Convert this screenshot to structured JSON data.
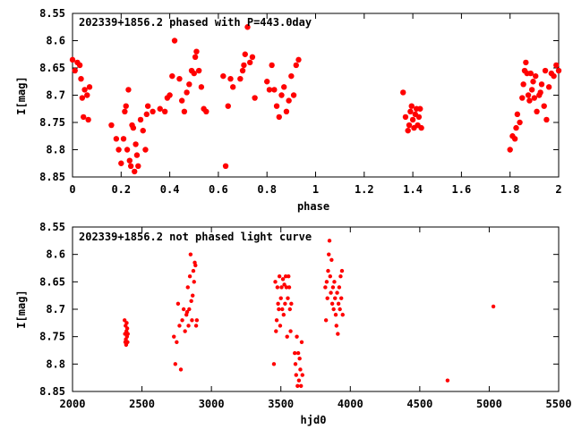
{
  "chart_data": [
    {
      "type": "scatter",
      "title": "202339+1856.2 phased with P=443.0day",
      "xlabel": "phase",
      "ylabel": "I[mag]",
      "xlim": [
        0,
        2
      ],
      "ylim": [
        8.85,
        8.55
      ],
      "y_inverted": true,
      "xticks": [
        "0",
        "0.2",
        "0.4",
        "0.6",
        "0.8",
        "1",
        "1.2",
        "1.4",
        "1.6",
        "1.8",
        "2"
      ],
      "yticks": [
        "8.55",
        "8.6",
        "8.65",
        "8.7",
        "8.75",
        "8.8",
        "8.85"
      ],
      "marker_color": "#ff0000",
      "grid": false,
      "series": [
        {
          "points": [
            [
              0.0,
              8.635
            ],
            [
              0.01,
              8.655
            ],
            [
              0.02,
              8.64
            ],
            [
              0.03,
              8.645
            ],
            [
              0.035,
              8.67
            ],
            [
              0.04,
              8.705
            ],
            [
              0.045,
              8.74
            ],
            [
              0.05,
              8.69
            ],
            [
              0.06,
              8.7
            ],
            [
              0.065,
              8.745
            ],
            [
              0.07,
              8.685
            ],
            [
              0.16,
              8.755
            ],
            [
              0.18,
              8.78
            ],
            [
              0.19,
              8.8
            ],
            [
              0.2,
              8.825
            ],
            [
              0.21,
              8.78
            ],
            [
              0.215,
              8.73
            ],
            [
              0.22,
              8.72
            ],
            [
              0.225,
              8.8
            ],
            [
              0.23,
              8.69
            ],
            [
              0.235,
              8.82
            ],
            [
              0.24,
              8.83
            ],
            [
              0.245,
              8.755
            ],
            [
              0.25,
              8.76
            ],
            [
              0.255,
              8.84
            ],
            [
              0.26,
              8.79
            ],
            [
              0.265,
              8.81
            ],
            [
              0.27,
              8.83
            ],
            [
              0.28,
              8.745
            ],
            [
              0.29,
              8.765
            ],
            [
              0.3,
              8.8
            ],
            [
              0.305,
              8.735
            ],
            [
              0.31,
              8.72
            ],
            [
              0.33,
              8.73
            ],
            [
              0.36,
              8.725
            ],
            [
              0.38,
              8.73
            ],
            [
              0.39,
              8.705
            ],
            [
              0.4,
              8.7
            ],
            [
              0.41,
              8.665
            ],
            [
              0.42,
              8.6
            ],
            [
              0.44,
              8.67
            ],
            [
              0.45,
              8.71
            ],
            [
              0.46,
              8.73
            ],
            [
              0.47,
              8.695
            ],
            [
              0.48,
              8.68
            ],
            [
              0.49,
              8.655
            ],
            [
              0.5,
              8.66
            ],
            [
              0.505,
              8.63
            ],
            [
              0.51,
              8.62
            ],
            [
              0.52,
              8.655
            ],
            [
              0.53,
              8.685
            ],
            [
              0.54,
              8.725
            ],
            [
              0.55,
              8.73
            ],
            [
              0.62,
              8.665
            ],
            [
              0.63,
              8.83
            ],
            [
              0.64,
              8.72
            ],
            [
              0.65,
              8.67
            ],
            [
              0.66,
              8.685
            ],
            [
              0.69,
              8.67
            ],
            [
              0.7,
              8.655
            ],
            [
              0.705,
              8.645
            ],
            [
              0.71,
              8.625
            ],
            [
              0.72,
              8.575
            ],
            [
              0.73,
              8.64
            ],
            [
              0.74,
              8.63
            ],
            [
              0.75,
              8.705
            ],
            [
              0.8,
              8.675
            ],
            [
              0.81,
              8.69
            ],
            [
              0.82,
              8.645
            ],
            [
              0.83,
              8.69
            ],
            [
              0.84,
              8.72
            ],
            [
              0.85,
              8.74
            ],
            [
              0.86,
              8.7
            ],
            [
              0.87,
              8.685
            ],
            [
              0.88,
              8.73
            ],
            [
              0.89,
              8.71
            ],
            [
              0.9,
              8.665
            ],
            [
              0.91,
              8.7
            ],
            [
              0.92,
              8.645
            ],
            [
              0.93,
              8.635
            ],
            [
              1.36,
              8.695
            ],
            [
              1.37,
              8.74
            ],
            [
              1.38,
              8.765
            ],
            [
              1.385,
              8.755
            ],
            [
              1.39,
              8.73
            ],
            [
              1.395,
              8.72
            ],
            [
              1.4,
              8.745
            ],
            [
              1.405,
              8.76
            ],
            [
              1.41,
              8.735
            ],
            [
              1.415,
              8.725
            ],
            [
              1.42,
              8.755
            ],
            [
              1.425,
              8.74
            ],
            [
              1.43,
              8.725
            ],
            [
              1.435,
              8.76
            ],
            [
              1.8,
              8.8
            ],
            [
              1.81,
              8.775
            ],
            [
              1.82,
              8.78
            ],
            [
              1.825,
              8.76
            ],
            [
              1.83,
              8.735
            ],
            [
              1.84,
              8.75
            ],
            [
              1.85,
              8.705
            ],
            [
              1.855,
              8.68
            ],
            [
              1.86,
              8.655
            ],
            [
              1.865,
              8.64
            ],
            [
              1.87,
              8.66
            ],
            [
              1.875,
              8.7
            ],
            [
              1.88,
              8.71
            ],
            [
              1.885,
              8.66
            ],
            [
              1.89,
              8.69
            ],
            [
              1.895,
              8.675
            ],
            [
              1.9,
              8.705
            ],
            [
              1.905,
              8.665
            ],
            [
              1.91,
              8.73
            ],
            [
              1.92,
              8.7
            ],
            [
              1.925,
              8.695
            ],
            [
              1.93,
              8.68
            ],
            [
              1.94,
              8.72
            ],
            [
              1.945,
              8.655
            ],
            [
              1.95,
              8.745
            ],
            [
              1.96,
              8.685
            ],
            [
              1.97,
              8.66
            ],
            [
              1.98,
              8.665
            ],
            [
              1.99,
              8.645
            ],
            [
              2.0,
              8.655
            ]
          ]
        }
      ]
    },
    {
      "type": "scatter",
      "title": "202339+1856.2 not phased light curve",
      "xlabel": "hjd0",
      "ylabel": "I[mag]",
      "xlim": [
        2000,
        5500
      ],
      "ylim": [
        8.85,
        8.55
      ],
      "y_inverted": true,
      "xticks": [
        "2000",
        "2500",
        "3000",
        "3500",
        "4000",
        "4500",
        "5000",
        "5500"
      ],
      "yticks": [
        "8.55",
        "8.6",
        "8.65",
        "8.7",
        "8.75",
        "8.8",
        "8.85"
      ],
      "marker_color": "#ff0000",
      "grid": false,
      "series": [
        {
          "points": [
            [
              2375,
              8.72
            ],
            [
              2378,
              8.745
            ],
            [
              2380,
              8.76
            ],
            [
              2382,
              8.73
            ],
            [
              2384,
              8.755
            ],
            [
              2386,
              8.765
            ],
            [
              2388,
              8.74
            ],
            [
              2390,
              8.725
            ],
            [
              2392,
              8.75
            ],
            [
              2394,
              8.735
            ],
            [
              2396,
              8.76
            ],
            [
              2398,
              8.745
            ],
            [
              2730,
              8.75
            ],
            [
              2740,
              8.8
            ],
            [
              2750,
              8.76
            ],
            [
              2760,
              8.69
            ],
            [
              2770,
              8.73
            ],
            [
              2780,
              8.81
            ],
            [
              2790,
              8.72
            ],
            [
              2800,
              8.7
            ],
            [
              2810,
              8.74
            ],
            [
              2820,
              8.71
            ],
            [
              2825,
              8.705
            ],
            [
              2830,
              8.66
            ],
            [
              2835,
              8.73
            ],
            [
              2840,
              8.7
            ],
            [
              2845,
              8.64
            ],
            [
              2850,
              8.6
            ],
            [
              2855,
              8.685
            ],
            [
              2860,
              8.72
            ],
            [
              2865,
              8.675
            ],
            [
              2870,
              8.63
            ],
            [
              2875,
              8.65
            ],
            [
              2880,
              8.615
            ],
            [
              2885,
              8.62
            ],
            [
              2890,
              8.73
            ],
            [
              2895,
              8.72
            ],
            [
              3450,
              8.8
            ],
            [
              3460,
              8.65
            ],
            [
              3465,
              8.74
            ],
            [
              3470,
              8.72
            ],
            [
              3475,
              8.66
            ],
            [
              3480,
              8.69
            ],
            [
              3485,
              8.7
            ],
            [
              3490,
              8.64
            ],
            [
              3495,
              8.73
            ],
            [
              3500,
              8.68
            ],
            [
              3505,
              8.66
            ],
            [
              3510,
              8.7
            ],
            [
              3515,
              8.645
            ],
            [
              3520,
              8.71
            ],
            [
              3525,
              8.655
            ],
            [
              3530,
              8.69
            ],
            [
              3535,
              8.64
            ],
            [
              3540,
              8.66
            ],
            [
              3545,
              8.75
            ],
            [
              3550,
              8.68
            ],
            [
              3555,
              8.64
            ],
            [
              3560,
              8.66
            ],
            [
              3565,
              8.7
            ],
            [
              3570,
              8.74
            ],
            [
              3575,
              8.69
            ],
            [
              3600,
              8.78
            ],
            [
              3605,
              8.8
            ],
            [
              3610,
              8.82
            ],
            [
              3615,
              8.75
            ],
            [
              3620,
              8.84
            ],
            [
              3625,
              8.78
            ],
            [
              3630,
              8.83
            ],
            [
              3635,
              8.79
            ],
            [
              3640,
              8.81
            ],
            [
              3645,
              8.84
            ],
            [
              3650,
              8.76
            ],
            [
              3655,
              8.82
            ],
            [
              3820,
              8.66
            ],
            [
              3825,
              8.72
            ],
            [
              3830,
              8.65
            ],
            [
              3835,
              8.68
            ],
            [
              3840,
              8.63
            ],
            [
              3845,
              8.6
            ],
            [
              3850,
              8.575
            ],
            [
              3855,
              8.64
            ],
            [
              3860,
              8.67
            ],
            [
              3865,
              8.61
            ],
            [
              3870,
              8.69
            ],
            [
              3875,
              8.66
            ],
            [
              3880,
              8.7
            ],
            [
              3885,
              8.65
            ],
            [
              3890,
              8.68
            ],
            [
              3895,
              8.71
            ],
            [
              3900,
              8.73
            ],
            [
              3905,
              8.67
            ],
            [
              3910,
              8.745
            ],
            [
              3915,
              8.69
            ],
            [
              3920,
              8.66
            ],
            [
              3925,
              8.7
            ],
            [
              3930,
              8.64
            ],
            [
              3935,
              8.68
            ],
            [
              3940,
              8.63
            ],
            [
              3945,
              8.71
            ],
            [
              4700,
              8.83
            ],
            [
              5030,
              8.695
            ]
          ]
        }
      ]
    }
  ]
}
